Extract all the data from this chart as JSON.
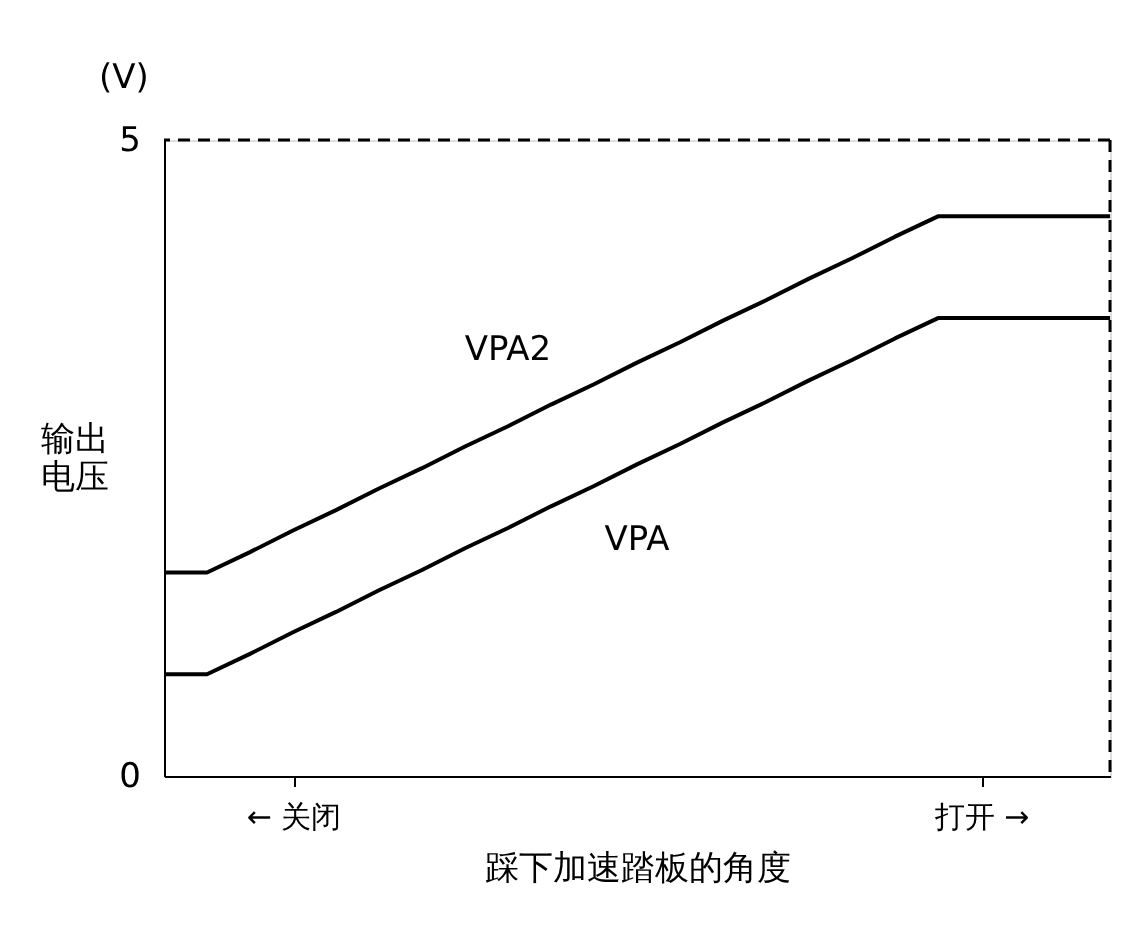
{
  "chart_data": {
    "type": "line",
    "xlabel": "踩下加速踏板的角度",
    "ylabel": "输出电压",
    "annotations": [
      "(V)"
    ],
    "categories": [
      null,
      null,
      null,
      "← 关闭",
      null,
      null,
      null,
      null,
      null,
      null,
      null,
      null,
      null,
      null,
      null,
      null,
      null,
      null,
      null,
      "打开 →",
      null,
      null,
      null
    ],
    "series": [
      {
        "name": "VPA2",
        "color": "#000000",
        "values": [
          1.6,
          1.6,
          1.76,
          1.93,
          2.09,
          2.26,
          2.42,
          2.59,
          2.75,
          2.92,
          3.08,
          3.25,
          3.41,
          3.58,
          3.74,
          3.91,
          4.07,
          4.24,
          4.4,
          4.4,
          4.4,
          4.4,
          4.4
        ]
      },
      {
        "name": "VPA",
        "color": "#000000",
        "values": [
          0.8,
          0.8,
          0.96,
          1.13,
          1.29,
          1.46,
          1.62,
          1.79,
          1.95,
          2.12,
          2.28,
          2.45,
          2.61,
          2.78,
          2.94,
          3.11,
          3.27,
          3.44,
          3.6,
          3.6,
          3.6,
          3.6,
          3.6
        ]
      }
    ],
    "ylim": [
      0,
      5
    ],
    "yticks": [
      0,
      5
    ],
    "ref_lines": [
      {
        "axis": "y",
        "value": 5,
        "label": null,
        "color": "#000000",
        "line_style": "dashed"
      }
    ],
    "grid": false,
    "legend": false,
    "marker": "none",
    "line_style": "solid"
  }
}
